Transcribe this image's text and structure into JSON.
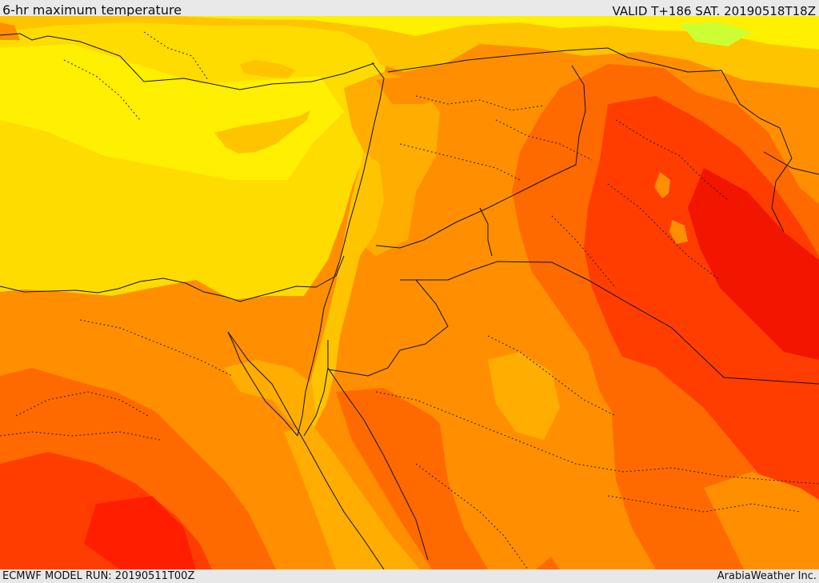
{
  "header": {
    "title": "6-hr maximum temperature",
    "valid": "VALID T+186 SAT. 20190518T18Z"
  },
  "footer": {
    "model_run": "ECMWF MODEL RUN: 20190511T00Z",
    "credit": "ArabiaWeather Inc."
  },
  "map": {
    "colors": {
      "sea": "#ffdc00",
      "lightYellow": "#ffef00",
      "gold": "#ffc400",
      "amber": "#ffad00",
      "orange": "#ff8f00",
      "deepOrange": "#ff6a00",
      "red": "#ff3d00",
      "darkRed": "#ff1f00",
      "hotRed": "#f21500",
      "green": "#ccff33",
      "border": "#111111"
    }
  }
}
